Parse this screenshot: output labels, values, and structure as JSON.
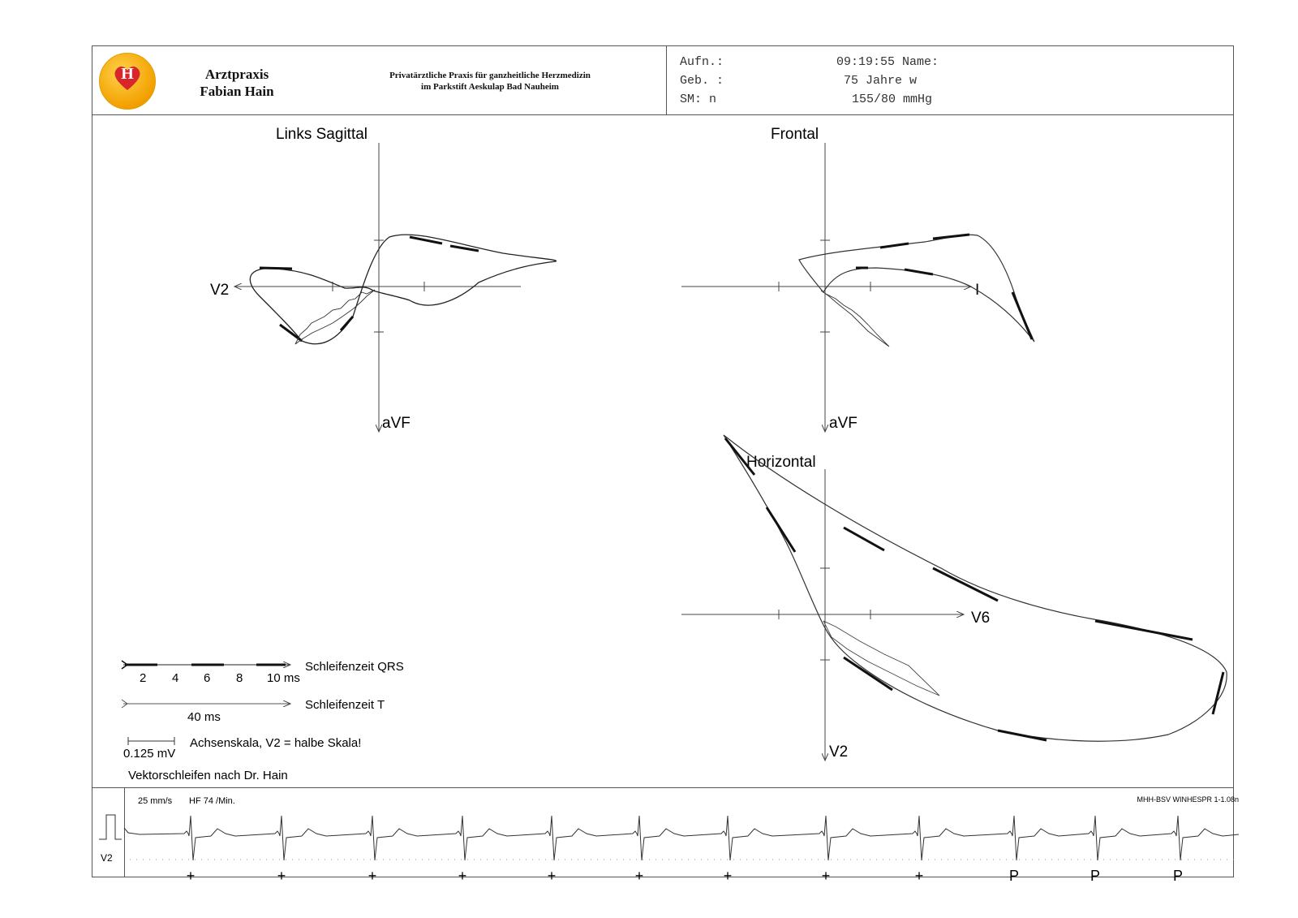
{
  "header": {
    "logo_letter": "H",
    "practice_line1": "Arztpraxis",
    "practice_line2": "Fabian Hain",
    "subtitle_line1": "Privatärztliche Praxis für ganzheitliche Herzmedizin",
    "subtitle_line2": "im Parkstift Aeskulap Bad Nauheim",
    "patient": {
      "row1_label": "Aufn.:",
      "row1_value": "09:19:55 Name:",
      "row2_label": "Geb. :",
      "row2_value": "75 Jahre w",
      "row3_label": "SM: n",
      "row3_value": "155/80 mmHg"
    }
  },
  "plots": {
    "sagittal": {
      "title": "Links Sagittal",
      "x_axis": "V2",
      "y_axis": "aVF"
    },
    "frontal": {
      "title": "Frontal",
      "x_axis": "I",
      "y_axis": "aVF"
    },
    "horizontal": {
      "title": "Horizontal",
      "x_axis": "V6",
      "y_axis": "V2"
    }
  },
  "legend": {
    "qrs_ticks": [
      "2",
      "4",
      "6",
      "8",
      "10 ms"
    ],
    "qrs_label": "Schleifenzeit QRS",
    "t_tick": "40 ms",
    "t_label": "Schleifenzeit T",
    "scale_value": "0.125 mV",
    "scale_label": "Achsenskala, V2 = halbe Skala!",
    "method": "Vektorschleifen nach Dr. Hain"
  },
  "strip": {
    "speed": "25 mm/s",
    "heart_rate": "HF 74 /Min.",
    "software": "MHH-BSV WINHESPR 1-1.08n",
    "lead": "V2",
    "beat_markers": [
      "+",
      "+",
      "+",
      "+",
      "+",
      "+",
      "+",
      "+",
      "+",
      "P",
      "P",
      "P"
    ]
  },
  "colors": {
    "trace": "#111111",
    "axis": "#444444",
    "frame": "#555555"
  }
}
